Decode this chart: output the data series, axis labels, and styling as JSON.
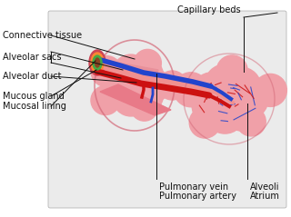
{
  "bg_color": "#f0f0f0",
  "box_color": "#e8e8e8",
  "pink_alveoli": "#f0a0a8",
  "pink_dark": "#d8687a",
  "red_vessel": "#cc1111",
  "blue_vessel": "#2244cc",
  "green_mucosa": "#44aa44",
  "orange_mucous": "#ff8833",
  "label_color": "#111111",
  "labels": {
    "capillary_beds": "Capillary beds",
    "connective_tissue": "Connective tissue",
    "alveolar_sacs": "Alveolar sacs",
    "alveolar_duct": "Alveolar duct",
    "mucous_gland": "Mucous gland",
    "mucosal_lining": "Mucosal lining",
    "pulmonary_vein": "Pulmonary vein",
    "pulmonary_artery": "Pulmonary artery",
    "alveoli": "Alveoli",
    "atrium": "Atrium"
  }
}
